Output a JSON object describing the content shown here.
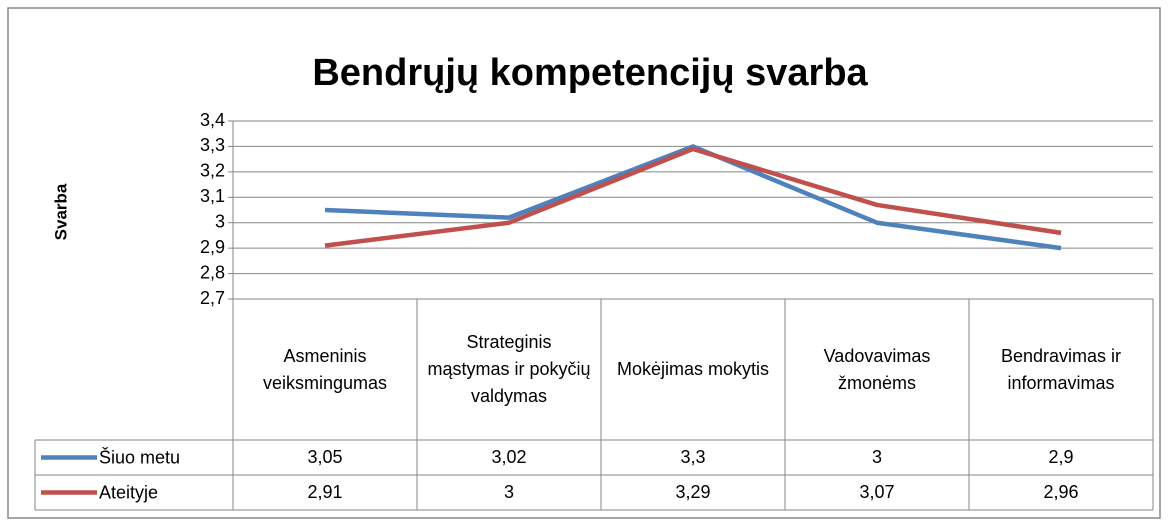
{
  "chart_data": {
    "type": "line",
    "title": "Bendrųjų kompetencijų svarba",
    "y_label": "Svarba",
    "categories": [
      "Asmeninis veiksmingumas",
      "Strateginis mąstymas ir pokyčių valdymas",
      "Mokėjimas mokytis",
      "Vadovavimas žmonėms",
      "Bendravimas ir informavimas"
    ],
    "series": [
      {
        "name": "Šiuo metu",
        "color": "#4f81bd",
        "values": [
          3.05,
          3.02,
          3.3,
          3,
          2.9
        ],
        "value_labels": [
          "3,05",
          "3,02",
          "3,3",
          "3",
          "2,9"
        ]
      },
      {
        "name": "Ateityje",
        "color": "#c0504d",
        "values": [
          2.91,
          3,
          3.29,
          3.07,
          2.96
        ],
        "value_labels": [
          "2,91",
          "3",
          "3,29",
          "3,07",
          "2,96"
        ]
      }
    ],
    "ylim": [
      2.7,
      3.4
    ],
    "yticks": [
      {
        "value": 2.7,
        "label": "2,7"
      },
      {
        "value": 2.8,
        "label": "2,8"
      },
      {
        "value": 2.9,
        "label": "2,9"
      },
      3,
      {
        "value": 3.1,
        "label": "3,1"
      },
      {
        "value": 3.2,
        "label": "3,2"
      },
      {
        "value": 3.3,
        "label": "3,3"
      },
      {
        "value": 3.4,
        "label": "3,4"
      }
    ],
    "grid": true,
    "data_table": true
  }
}
